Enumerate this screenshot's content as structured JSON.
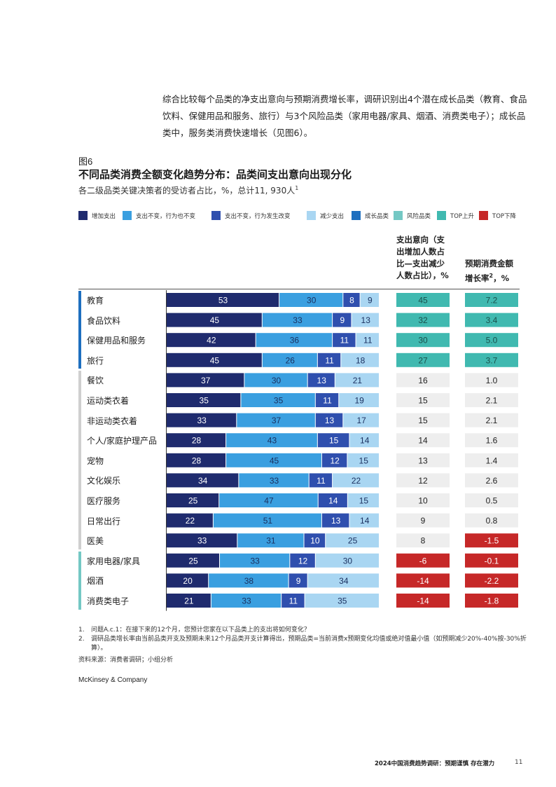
{
  "intro_text": "综合比较每个品类的净支出意向与预期消费增长率，调研识别出4个潜在成长品类（教育、食品饮料、保健用品和服务、旅行）与3个风险品类（家用电器/家具、烟酒、消费类电子）；成长品类中，服务类消费快速增长（见图6）。",
  "figure": {
    "label": "图6",
    "title": "不同品类消费全额变化趋势分布：品类间支出意向出现分化",
    "subtitle": "各二级品类关键决策者的受访者占比，%，总计11, 930人",
    "subtitle_sup": "1"
  },
  "legend": [
    {
      "label": "增加支出",
      "color": "#1f2b6e"
    },
    {
      "label": "支出不变，行为也不变",
      "color": "#3a9fe0"
    },
    {
      "label": "支出不变，行为发生改变",
      "color": "#2f4fae"
    },
    {
      "label": "减少支出",
      "color": "#a9d6f2"
    },
    {
      "label": "成长品类",
      "color": "#1e6fbf"
    },
    {
      "label": "风险品类",
      "color": "#74c8c4"
    },
    {
      "label": "TOP上升",
      "color": "#40b9b0"
    },
    {
      "label": "TOP下降",
      "color": "#c62828"
    }
  ],
  "columns": {
    "net_intent": "支出意向（支出增加人数占比—支出减少人数占比），%",
    "growth": "预期消费金额增长率",
    "growth_sup": "2",
    "growth_unit": "，%"
  },
  "chart_data": {
    "type": "bar",
    "stacked": true,
    "orientation": "horizontal",
    "title": "不同品类消费全额变化趋势分布：品类间支出意向出现分化",
    "unit": "%",
    "categories": [
      "教育",
      "食品饮料",
      "保健用品和服务",
      "旅行",
      "餐饮",
      "运动类衣着",
      "非运动类衣着",
      "个人/家庭护理产品",
      "宠物",
      "文化娱乐",
      "医疗服务",
      "日常出行",
      "医美",
      "家用电器/家具",
      "烟酒",
      "消费类电子"
    ],
    "groups": [
      "growth",
      "growth",
      "growth",
      "growth",
      "neutral",
      "neutral",
      "neutral",
      "neutral",
      "neutral",
      "neutral",
      "neutral",
      "neutral",
      "neutral",
      "risk",
      "risk",
      "risk"
    ],
    "series": [
      {
        "name": "增加支出",
        "values": [
          53,
          45,
          42,
          45,
          37,
          35,
          33,
          28,
          28,
          34,
          25,
          22,
          33,
          25,
          20,
          21
        ]
      },
      {
        "name": "支出不变，行为也不变",
        "values": [
          30,
          33,
          36,
          26,
          30,
          35,
          37,
          43,
          45,
          33,
          47,
          51,
          31,
          33,
          38,
          33
        ]
      },
      {
        "name": "支出不变，行为发生改变",
        "values": [
          8,
          9,
          11,
          11,
          13,
          11,
          13,
          15,
          12,
          11,
          14,
          13,
          10,
          12,
          9,
          11
        ]
      },
      {
        "name": "减少支出",
        "values": [
          9,
          13,
          11,
          18,
          21,
          19,
          17,
          14,
          15,
          22,
          15,
          14,
          25,
          30,
          34,
          35
        ]
      }
    ],
    "net_intent": [
      45,
      32,
      30,
      27,
      16,
      15,
      15,
      14,
      13,
      12,
      10,
      9,
      8,
      -6,
      -14,
      -14
    ],
    "net_intent_labels": [
      "45",
      "32",
      "30",
      "27",
      "16",
      "15",
      "15",
      "14",
      "13",
      "12",
      "10",
      "9",
      "8",
      "-6",
      "-14",
      "-14"
    ],
    "growth_rate": [
      "7.2",
      "3.4",
      "5.0",
      "3.7",
      "1.0",
      "2.1",
      "2.1",
      "1.6",
      "1.4",
      "2.6",
      "0.5",
      "0.8",
      "-1.5",
      "-0.1",
      "-2.2",
      "-1.8"
    ],
    "net_intent_status": [
      "top",
      "top",
      "top",
      "top",
      "none",
      "none",
      "none",
      "none",
      "none",
      "none",
      "none",
      "none",
      "none",
      "bottom",
      "bottom",
      "bottom"
    ],
    "growth_status": [
      "top",
      "top",
      "top",
      "top",
      "none",
      "none",
      "none",
      "none",
      "none",
      "none",
      "none",
      "none",
      "bottom",
      "bottom",
      "bottom",
      "bottom"
    ]
  },
  "footnotes": [
    {
      "num": "1.",
      "text": "问题A.c.1：在接下来的12个月，您预计您家在以下品类上的支出将如何变化？"
    },
    {
      "num": "2.",
      "text": "调研品类增长率由当前品类开支及预期未来12个月品类开支计算得出，预期品类=当前消费x预期变化均值或绝对值最小值（如预期减少20%-40%按-30%折算）。"
    }
  ],
  "source": "资料来源：消费者调研；小组分析",
  "brand": "McKinsey & Company",
  "footer_text": "2024中国消费趋势调研：预期谨慎 存在潜力",
  "page_number": "11"
}
